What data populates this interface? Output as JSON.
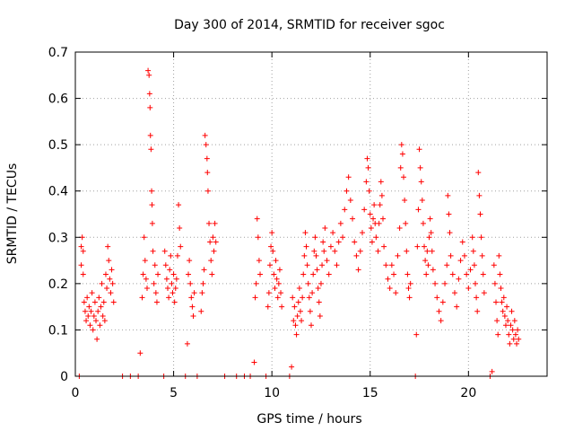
{
  "chart_data": {
    "type": "scatter",
    "title": "Day 300 of 2014, SRMTID for receiver sgoc",
    "xlabel": "GPS time / hours",
    "ylabel": "SRMTID / TECUs",
    "xlim": [
      0,
      24
    ],
    "ylim": [
      0,
      0.7
    ],
    "xticks": [
      0,
      5,
      10,
      15,
      20
    ],
    "yticks": [
      0,
      0.1,
      0.2,
      0.3,
      0.4,
      0.5,
      0.6,
      0.7
    ],
    "xtick_labels": [
      "0",
      "5",
      "10",
      "15",
      "20"
    ],
    "ytick_labels": [
      "0",
      "0.1",
      "0.2",
      "0.3",
      "0.4",
      "0.5",
      "0.6",
      "0.7"
    ],
    "grid": true,
    "marker": "+",
    "color": "#ff0000",
    "series": [
      {
        "name": "SRMTID",
        "points": [
          [
            0.2,
            0.0
          ],
          [
            0.3,
            0.28
          ],
          [
            0.3,
            0.24
          ],
          [
            0.35,
            0.3
          ],
          [
            0.4,
            0.27
          ],
          [
            0.4,
            0.22
          ],
          [
            0.45,
            0.16
          ],
          [
            0.5,
            0.14
          ],
          [
            0.55,
            0.12
          ],
          [
            0.6,
            0.17
          ],
          [
            0.65,
            0.13
          ],
          [
            0.7,
            0.15
          ],
          [
            0.75,
            0.11
          ],
          [
            0.8,
            0.14
          ],
          [
            0.85,
            0.18
          ],
          [
            0.9,
            0.1
          ],
          [
            0.95,
            0.13
          ],
          [
            1.0,
            0.16
          ],
          [
            1.05,
            0.12
          ],
          [
            1.1,
            0.08
          ],
          [
            1.15,
            0.14
          ],
          [
            1.2,
            0.17
          ],
          [
            1.25,
            0.11
          ],
          [
            1.3,
            0.15
          ],
          [
            1.35,
            0.2
          ],
          [
            1.4,
            0.13
          ],
          [
            1.45,
            0.16
          ],
          [
            1.5,
            0.12
          ],
          [
            1.55,
            0.22
          ],
          [
            1.6,
            0.19
          ],
          [
            1.65,
            0.28
          ],
          [
            1.7,
            0.25
          ],
          [
            1.75,
            0.21
          ],
          [
            1.8,
            0.18
          ],
          [
            1.85,
            0.23
          ],
          [
            1.9,
            0.2
          ],
          [
            1.95,
            0.16
          ],
          [
            2.4,
            0.0
          ],
          [
            2.8,
            0.0
          ],
          [
            3.2,
            0.0
          ],
          [
            3.3,
            0.05
          ],
          [
            3.4,
            0.17
          ],
          [
            3.45,
            0.22
          ],
          [
            3.5,
            0.3
          ],
          [
            3.55,
            0.25
          ],
          [
            3.6,
            0.21
          ],
          [
            3.65,
            0.19
          ],
          [
            3.7,
            0.66
          ],
          [
            3.75,
            0.65
          ],
          [
            3.78,
            0.61
          ],
          [
            3.8,
            0.58
          ],
          [
            3.82,
            0.52
          ],
          [
            3.85,
            0.49
          ],
          [
            3.88,
            0.4
          ],
          [
            3.9,
            0.37
          ],
          [
            3.92,
            0.33
          ],
          [
            3.95,
            0.27
          ],
          [
            4.0,
            0.2
          ],
          [
            4.05,
            0.24
          ],
          [
            4.1,
            0.18
          ],
          [
            4.15,
            0.16
          ],
          [
            4.2,
            0.22
          ],
          [
            4.5,
            0.0
          ],
          [
            4.55,
            0.27
          ],
          [
            4.6,
            0.24
          ],
          [
            4.65,
            0.21
          ],
          [
            4.7,
            0.19
          ],
          [
            4.75,
            0.17
          ],
          [
            4.8,
            0.23
          ],
          [
            4.85,
            0.26
          ],
          [
            4.9,
            0.2
          ],
          [
            4.95,
            0.18
          ],
          [
            5.0,
            0.22
          ],
          [
            5.05,
            0.16
          ],
          [
            5.1,
            0.19
          ],
          [
            5.15,
            0.21
          ],
          [
            5.2,
            0.26
          ],
          [
            5.25,
            0.37
          ],
          [
            5.3,
            0.32
          ],
          [
            5.35,
            0.28
          ],
          [
            5.6,
            0.0
          ],
          [
            5.7,
            0.07
          ],
          [
            5.75,
            0.22
          ],
          [
            5.8,
            0.25
          ],
          [
            5.85,
            0.2
          ],
          [
            5.9,
            0.17
          ],
          [
            5.95,
            0.15
          ],
          [
            6.0,
            0.13
          ],
          [
            6.05,
            0.18
          ],
          [
            6.2,
            0.0
          ],
          [
            6.4,
            0.14
          ],
          [
            6.45,
            0.18
          ],
          [
            6.5,
            0.2
          ],
          [
            6.55,
            0.23
          ],
          [
            6.6,
            0.52
          ],
          [
            6.65,
            0.5
          ],
          [
            6.7,
            0.47
          ],
          [
            6.72,
            0.44
          ],
          [
            6.75,
            0.4
          ],
          [
            6.8,
            0.33
          ],
          [
            6.85,
            0.29
          ],
          [
            6.9,
            0.25
          ],
          [
            6.95,
            0.22
          ],
          [
            7.0,
            0.3
          ],
          [
            7.05,
            0.27
          ],
          [
            7.1,
            0.33
          ],
          [
            7.15,
            0.29
          ],
          [
            7.6,
            0.0
          ],
          [
            8.2,
            0.0
          ],
          [
            8.6,
            0.0
          ],
          [
            8.9,
            0.0
          ],
          [
            9.1,
            0.03
          ],
          [
            9.15,
            0.17
          ],
          [
            9.2,
            0.2
          ],
          [
            9.25,
            0.34
          ],
          [
            9.3,
            0.3
          ],
          [
            9.35,
            0.25
          ],
          [
            9.4,
            0.22
          ],
          [
            9.7,
            0.0
          ],
          [
            9.8,
            0.15
          ],
          [
            9.85,
            0.18
          ],
          [
            9.9,
            0.24
          ],
          [
            9.95,
            0.28
          ],
          [
            10.0,
            0.31
          ],
          [
            10.05,
            0.27
          ],
          [
            10.1,
            0.22
          ],
          [
            10.15,
            0.19
          ],
          [
            10.2,
            0.25
          ],
          [
            10.25,
            0.21
          ],
          [
            10.3,
            0.17
          ],
          [
            10.35,
            0.2
          ],
          [
            10.4,
            0.23
          ],
          [
            10.45,
            0.18
          ],
          [
            10.5,
            0.15
          ],
          [
            10.9,
            0.0
          ],
          [
            11.0,
            0.02
          ],
          [
            11.05,
            0.17
          ],
          [
            11.1,
            0.12
          ],
          [
            11.15,
            0.15
          ],
          [
            11.2,
            0.11
          ],
          [
            11.25,
            0.09
          ],
          [
            11.3,
            0.13
          ],
          [
            11.35,
            0.16
          ],
          [
            11.4,
            0.19
          ],
          [
            11.45,
            0.14
          ],
          [
            11.5,
            0.12
          ],
          [
            11.55,
            0.17
          ],
          [
            11.6,
            0.22
          ],
          [
            11.65,
            0.26
          ],
          [
            11.7,
            0.31
          ],
          [
            11.75,
            0.28
          ],
          [
            11.8,
            0.24
          ],
          [
            11.85,
            0.2
          ],
          [
            11.9,
            0.17
          ],
          [
            11.95,
            0.14
          ],
          [
            12.0,
            0.11
          ],
          [
            12.05,
            0.18
          ],
          [
            12.1,
            0.22
          ],
          [
            12.15,
            0.27
          ],
          [
            12.2,
            0.3
          ],
          [
            12.25,
            0.26
          ],
          [
            12.3,
            0.23
          ],
          [
            12.35,
            0.19
          ],
          [
            12.4,
            0.16
          ],
          [
            12.45,
            0.13
          ],
          [
            12.5,
            0.2
          ],
          [
            12.55,
            0.24
          ],
          [
            12.6,
            0.29
          ],
          [
            12.65,
            0.27
          ],
          [
            12.7,
            0.32
          ],
          [
            12.8,
            0.25
          ],
          [
            12.9,
            0.22
          ],
          [
            13.0,
            0.28
          ],
          [
            13.1,
            0.31
          ],
          [
            13.2,
            0.27
          ],
          [
            13.3,
            0.24
          ],
          [
            13.4,
            0.29
          ],
          [
            13.5,
            0.33
          ],
          [
            13.6,
            0.3
          ],
          [
            13.7,
            0.36
          ],
          [
            13.8,
            0.4
          ],
          [
            13.9,
            0.43
          ],
          [
            14.0,
            0.38
          ],
          [
            14.1,
            0.34
          ],
          [
            14.2,
            0.29
          ],
          [
            14.3,
            0.26
          ],
          [
            14.4,
            0.23
          ],
          [
            14.5,
            0.27
          ],
          [
            14.6,
            0.31
          ],
          [
            14.7,
            0.36
          ],
          [
            14.8,
            0.42
          ],
          [
            14.85,
            0.47
          ],
          [
            14.9,
            0.45
          ],
          [
            14.95,
            0.4
          ],
          [
            15.0,
            0.35
          ],
          [
            15.05,
            0.32
          ],
          [
            15.1,
            0.29
          ],
          [
            15.15,
            0.34
          ],
          [
            15.2,
            0.37
          ],
          [
            15.25,
            0.33
          ],
          [
            15.3,
            0.3
          ],
          [
            15.4,
            0.27
          ],
          [
            15.45,
            0.33
          ],
          [
            15.5,
            0.37
          ],
          [
            15.55,
            0.42
          ],
          [
            15.6,
            0.39
          ],
          [
            15.65,
            0.34
          ],
          [
            15.7,
            0.28
          ],
          [
            15.8,
            0.24
          ],
          [
            15.9,
            0.21
          ],
          [
            16.0,
            0.19
          ],
          [
            16.1,
            0.24
          ],
          [
            16.2,
            0.22
          ],
          [
            16.3,
            0.18
          ],
          [
            16.4,
            0.26
          ],
          [
            16.5,
            0.32
          ],
          [
            16.55,
            0.45
          ],
          [
            16.6,
            0.5
          ],
          [
            16.65,
            0.48
          ],
          [
            16.7,
            0.43
          ],
          [
            16.75,
            0.38
          ],
          [
            16.8,
            0.33
          ],
          [
            16.85,
            0.27
          ],
          [
            16.9,
            0.22
          ],
          [
            16.95,
            0.19
          ],
          [
            17.0,
            0.17
          ],
          [
            17.05,
            0.2
          ],
          [
            17.3,
            0.0
          ],
          [
            17.35,
            0.09
          ],
          [
            17.4,
            0.28
          ],
          [
            17.45,
            0.36
          ],
          [
            17.5,
            0.49
          ],
          [
            17.55,
            0.45
          ],
          [
            17.6,
            0.42
          ],
          [
            17.65,
            0.38
          ],
          [
            17.7,
            0.33
          ],
          [
            17.75,
            0.28
          ],
          [
            17.8,
            0.25
          ],
          [
            17.85,
            0.22
          ],
          [
            17.9,
            0.27
          ],
          [
            17.95,
            0.24
          ],
          [
            18.0,
            0.3
          ],
          [
            18.05,
            0.34
          ],
          [
            18.1,
            0.31
          ],
          [
            18.15,
            0.27
          ],
          [
            18.2,
            0.23
          ],
          [
            18.3,
            0.2
          ],
          [
            18.4,
            0.17
          ],
          [
            18.5,
            0.14
          ],
          [
            18.6,
            0.12
          ],
          [
            18.7,
            0.16
          ],
          [
            18.8,
            0.2
          ],
          [
            18.9,
            0.24
          ],
          [
            18.95,
            0.39
          ],
          [
            19.0,
            0.35
          ],
          [
            19.05,
            0.31
          ],
          [
            19.1,
            0.26
          ],
          [
            19.2,
            0.22
          ],
          [
            19.3,
            0.18
          ],
          [
            19.4,
            0.15
          ],
          [
            19.5,
            0.21
          ],
          [
            19.6,
            0.25
          ],
          [
            19.7,
            0.29
          ],
          [
            19.8,
            0.26
          ],
          [
            19.9,
            0.22
          ],
          [
            20.0,
            0.19
          ],
          [
            20.1,
            0.23
          ],
          [
            20.2,
            0.3
          ],
          [
            20.25,
            0.27
          ],
          [
            20.3,
            0.24
          ],
          [
            20.35,
            0.2
          ],
          [
            20.4,
            0.17
          ],
          [
            20.45,
            0.14
          ],
          [
            20.5,
            0.44
          ],
          [
            20.55,
            0.39
          ],
          [
            20.6,
            0.35
          ],
          [
            20.65,
            0.3
          ],
          [
            20.7,
            0.26
          ],
          [
            20.75,
            0.22
          ],
          [
            20.8,
            0.18
          ],
          [
            21.1,
            0.0
          ],
          [
            21.2,
            0.01
          ],
          [
            21.3,
            0.24
          ],
          [
            21.35,
            0.2
          ],
          [
            21.4,
            0.16
          ],
          [
            21.45,
            0.12
          ],
          [
            21.5,
            0.09
          ],
          [
            21.55,
            0.26
          ],
          [
            21.6,
            0.22
          ],
          [
            21.65,
            0.19
          ],
          [
            21.7,
            0.16
          ],
          [
            21.75,
            0.14
          ],
          [
            21.8,
            0.17
          ],
          [
            21.85,
            0.13
          ],
          [
            21.9,
            0.11
          ],
          [
            21.95,
            0.15
          ],
          [
            22.0,
            0.12
          ],
          [
            22.05,
            0.09
          ],
          [
            22.1,
            0.07
          ],
          [
            22.15,
            0.11
          ],
          [
            22.2,
            0.14
          ],
          [
            22.25,
            0.1
          ],
          [
            22.3,
            0.08
          ],
          [
            22.35,
            0.12
          ],
          [
            22.4,
            0.09
          ],
          [
            22.45,
            0.07
          ],
          [
            22.5,
            0.1
          ],
          [
            22.55,
            0.08
          ]
        ]
      }
    ]
  }
}
